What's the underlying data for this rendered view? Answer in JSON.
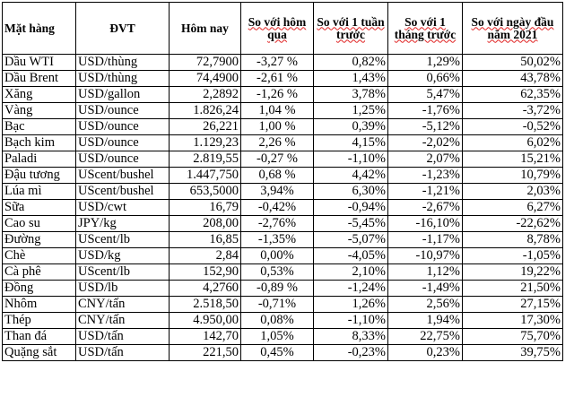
{
  "headers": [
    "Mặt hàng",
    "ĐVT",
    "Hôm nay",
    "So với hôm qua",
    "So với 1 tuần trước",
    "So với 1 tháng trước",
    "So với ngày đầu năm 2021"
  ],
  "rows": [
    [
      "Dầu WTI",
      "USD/thùng",
      "72,7900",
      "-3,27 %",
      "0,82%",
      "1,29%",
      "50,02%"
    ],
    [
      "Dầu Brent",
      "USD/thùng",
      "74,4900",
      "-2,61 %",
      "1,43%",
      "0,66%",
      "43,78%"
    ],
    [
      "Xăng",
      "USD/gallon",
      "2,2892",
      "-1,26 %",
      "3,78%",
      "5,47%",
      "62,35%"
    ],
    [
      "Vàng",
      "USD/ounce",
      "1.826,24",
      "1,04 %",
      "1,25%",
      "-1,76%",
      "-3,72%"
    ],
    [
      "Bạc",
      "USD/ounce",
      "26,221",
      "1,00 %",
      "0,39%",
      "-5,12%",
      "-0,52%"
    ],
    [
      "Bạch kim",
      "USD/ounce",
      "1.129,23",
      "2,26 %",
      "4,15%",
      "-2,02%",
      "6,02%"
    ],
    [
      "Paladi",
      "USD/ounce",
      "2.819,55",
      "-0,27 %",
      "-1,10%",
      "2,07%",
      "15,21%"
    ],
    [
      "Đậu tương",
      "UScent/bushel",
      "1.447,750",
      "0,68 %",
      "4,42%",
      "-1,23%",
      "10,79%"
    ],
    [
      "Lúa mì",
      "UScent/bushel",
      "653,5000",
      "3,94%",
      "6,30%",
      "-1,21%",
      "2,03%"
    ],
    [
      "Sữa",
      "USD/cwt",
      "16,79",
      "-0,42%",
      "-0,94%",
      "-2,67%",
      "6,27%"
    ],
    [
      "Cao su",
      "JPY/kg",
      "208,00",
      "-2,76%",
      "-5,45%",
      "-16,10%",
      "-22,62%"
    ],
    [
      "Đường",
      "UScent/lb",
      "16,85",
      "-1,35%",
      "-5,07%",
      "-1,17%",
      "8,78%"
    ],
    [
      "Chè",
      "USD/kg",
      "2,84",
      "0,00%",
      "-4,05%",
      "-10,97%",
      "-1,05%"
    ],
    [
      "Cà phê",
      "UScent/lb",
      "152,90",
      "0,53%",
      "2,10%",
      "1,12%",
      "19,22%"
    ],
    [
      "Đồng",
      "USD/lb",
      "4,2760",
      "-0,89 %",
      "-1,24%",
      "-1,49%",
      "21,50%"
    ],
    [
      "Nhôm",
      "CNY/tấn",
      "2.518,50",
      "-0,71%",
      "1,26%",
      "2,56%",
      "27,15%"
    ],
    [
      "Thép",
      "CNY/tấn",
      "4.950,00",
      "0,08%",
      "-1,10%",
      "1,94%",
      "17,30%"
    ],
    [
      "Than đá",
      "USD/tấn",
      "142,70",
      "1,05%",
      "8,33%",
      "22,75%",
      "75,70%"
    ],
    [
      "Quặng sắt",
      "USD/tấn",
      "221,50",
      "0,45%",
      "-0,23%",
      "0,23%",
      "39,75%"
    ]
  ]
}
